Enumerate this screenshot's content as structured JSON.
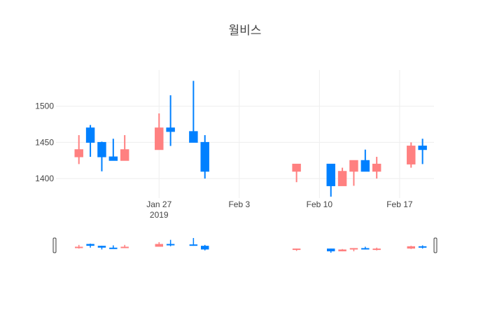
{
  "chart_data": {
    "type": "candlestick",
    "title": "월비스",
    "xlabel": "",
    "ylabel": "",
    "ylim": [
      1373,
      1550
    ],
    "xlim": [
      "2019-01-18",
      "2019-02-20"
    ],
    "increasing_color": "#FF8080",
    "decreasing_color": "#0080FF",
    "y_ticks": [
      1400,
      1450,
      1500
    ],
    "x_ticks": [
      {
        "date": "2019-01-27",
        "label": "Jan 27",
        "sublabel": "2019"
      },
      {
        "date": "2019-02-03",
        "label": "Feb 3",
        "sublabel": ""
      },
      {
        "date": "2019-02-10",
        "label": "Feb 10",
        "sublabel": ""
      },
      {
        "date": "2019-02-17",
        "label": "Feb 17",
        "sublabel": ""
      }
    ],
    "grid": true,
    "rangeslider": true,
    "candles": [
      {
        "date": "2019-01-20",
        "open": 1430,
        "high": 1460,
        "low": 1420,
        "close": 1440
      },
      {
        "date": "2019-01-21",
        "open": 1470,
        "high": 1474,
        "low": 1430,
        "close": 1450
      },
      {
        "date": "2019-01-22",
        "open": 1450,
        "high": 1451,
        "low": 1410,
        "close": 1430
      },
      {
        "date": "2019-01-23",
        "open": 1430,
        "high": 1455,
        "low": 1425,
        "close": 1425
      },
      {
        "date": "2019-01-24",
        "open": 1425,
        "high": 1460,
        "low": 1425,
        "close": 1440
      },
      {
        "date": "2019-01-27",
        "open": 1440,
        "high": 1490,
        "low": 1440,
        "close": 1470
      },
      {
        "date": "2019-01-28",
        "open": 1470,
        "high": 1515,
        "low": 1445,
        "close": 1465
      },
      {
        "date": "2019-01-30",
        "open": 1465,
        "high": 1535,
        "low": 1450,
        "close": 1450
      },
      {
        "date": "2019-01-31",
        "open": 1450,
        "high": 1460,
        "low": 1400,
        "close": 1410
      },
      {
        "date": "2019-02-08",
        "open": 1410,
        "high": 1420,
        "low": 1395,
        "close": 1420
      },
      {
        "date": "2019-02-11",
        "open": 1420,
        "high": 1420,
        "low": 1375,
        "close": 1390
      },
      {
        "date": "2019-02-12",
        "open": 1390,
        "high": 1415,
        "low": 1390,
        "close": 1410
      },
      {
        "date": "2019-02-13",
        "open": 1410,
        "high": 1425,
        "low": 1390,
        "close": 1425
      },
      {
        "date": "2019-02-14",
        "open": 1425,
        "high": 1440,
        "low": 1410,
        "close": 1410
      },
      {
        "date": "2019-02-15",
        "open": 1410,
        "high": 1430,
        "low": 1400,
        "close": 1420
      },
      {
        "date": "2019-02-18",
        "open": 1420,
        "high": 1450,
        "low": 1415,
        "close": 1445
      },
      {
        "date": "2019-02-19",
        "open": 1445,
        "high": 1455,
        "low": 1420,
        "close": 1440
      }
    ]
  }
}
